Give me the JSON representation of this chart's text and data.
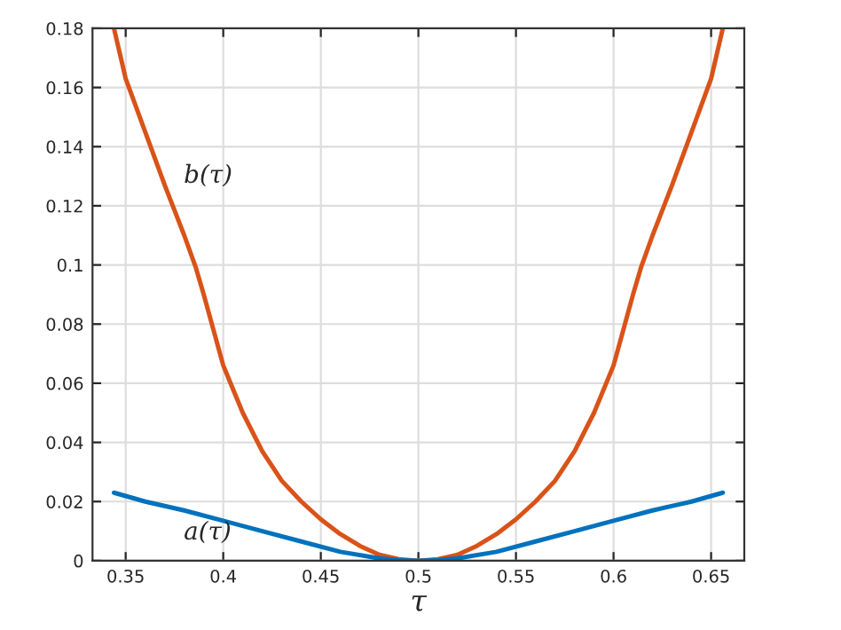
{
  "chart_data": {
    "type": "line",
    "xlabel": "τ",
    "series": [
      {
        "color": "#d95319",
        "x": [
          0.344,
          0.35,
          0.36,
          0.37,
          0.38,
          0.386,
          0.39,
          0.4,
          0.41,
          0.42,
          0.43,
          0.44,
          0.45,
          0.46,
          0.47,
          0.48,
          0.49,
          0.5,
          0.51,
          0.52,
          0.53,
          0.54,
          0.55,
          0.56,
          0.57,
          0.58,
          0.59,
          0.6,
          0.61,
          0.614,
          0.62,
          0.63,
          0.64,
          0.65,
          0.656
        ],
        "values": [
          0.18,
          0.163,
          0.145,
          0.127,
          0.11,
          0.099,
          0.09,
          0.066,
          0.05,
          0.037,
          0.027,
          0.02,
          0.014,
          0.009,
          0.005,
          0.002,
          0.0005,
          0,
          0.0005,
          0.002,
          0.005,
          0.009,
          0.014,
          0.02,
          0.027,
          0.037,
          0.05,
          0.066,
          0.09,
          0.099,
          0.11,
          0.127,
          0.145,
          0.163,
          0.18
        ]
      },
      {
        "color": "#0072bd",
        "x": [
          0.344,
          0.36,
          0.38,
          0.4,
          0.42,
          0.44,
          0.46,
          0.48,
          0.49,
          0.5,
          0.51,
          0.52,
          0.54,
          0.56,
          0.58,
          0.6,
          0.62,
          0.64,
          0.656
        ],
        "values": [
          0.023,
          0.02,
          0.017,
          0.0135,
          0.01,
          0.0065,
          0.003,
          0.0008,
          0.0002,
          0,
          0.0002,
          0.0008,
          0.003,
          0.0065,
          0.01,
          0.0135,
          0.017,
          0.02,
          0.023
        ]
      }
    ],
    "annotations": [
      "b(τ)",
      "a(τ)"
    ],
    "xlim": [
      0.333,
      0.667
    ],
    "ylim": [
      0,
      0.18
    ],
    "xticks": [
      0.35,
      0.4,
      0.45,
      0.5,
      0.55,
      0.6,
      0.65
    ],
    "yticks": [
      0,
      0.02,
      0.04,
      0.06,
      0.08,
      0.1,
      0.12,
      0.14,
      0.16,
      0.18
    ],
    "grid": true,
    "legend": false
  }
}
